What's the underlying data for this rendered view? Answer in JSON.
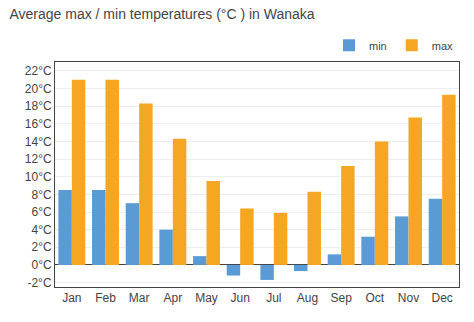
{
  "chart_data": {
    "type": "bar",
    "title": "Average max / min temperatures (°C ) in Wanaka",
    "categories": [
      "Jan",
      "Feb",
      "Mar",
      "Apr",
      "May",
      "Jun",
      "Jul",
      "Aug",
      "Sep",
      "Oct",
      "Nov",
      "Dec"
    ],
    "series": [
      {
        "name": "min",
        "color": "#5b9bd5",
        "values": [
          8.5,
          8.5,
          7.0,
          4.0,
          1.0,
          -1.2,
          -1.7,
          -0.7,
          1.2,
          3.2,
          5.5,
          7.5
        ]
      },
      {
        "name": "max",
        "color": "#f5a623",
        "values": [
          21.0,
          21.0,
          18.3,
          14.3,
          9.5,
          6.4,
          5.9,
          8.3,
          11.2,
          14.0,
          16.7,
          19.3
        ]
      }
    ],
    "ylim": [
      -2.5,
      23
    ],
    "yticks": [
      {
        "value": -2,
        "label": "-2°C"
      },
      {
        "value": 0,
        "label": "0°C"
      },
      {
        "value": 2,
        "label": "2°C"
      },
      {
        "value": 4,
        "label": "4°C"
      },
      {
        "value": 6,
        "label": "6°C"
      },
      {
        "value": 8,
        "label": "8°C"
      },
      {
        "value": 10,
        "label": "10°C"
      },
      {
        "value": 12,
        "label": "12°C"
      },
      {
        "value": 14,
        "label": "14°C"
      },
      {
        "value": 16,
        "label": "16°C"
      },
      {
        "value": 18,
        "label": "18°C"
      },
      {
        "value": 20,
        "label": "20°C"
      },
      {
        "value": 22,
        "label": "22°C"
      }
    ],
    "grid": true,
    "legend": "upper right"
  }
}
